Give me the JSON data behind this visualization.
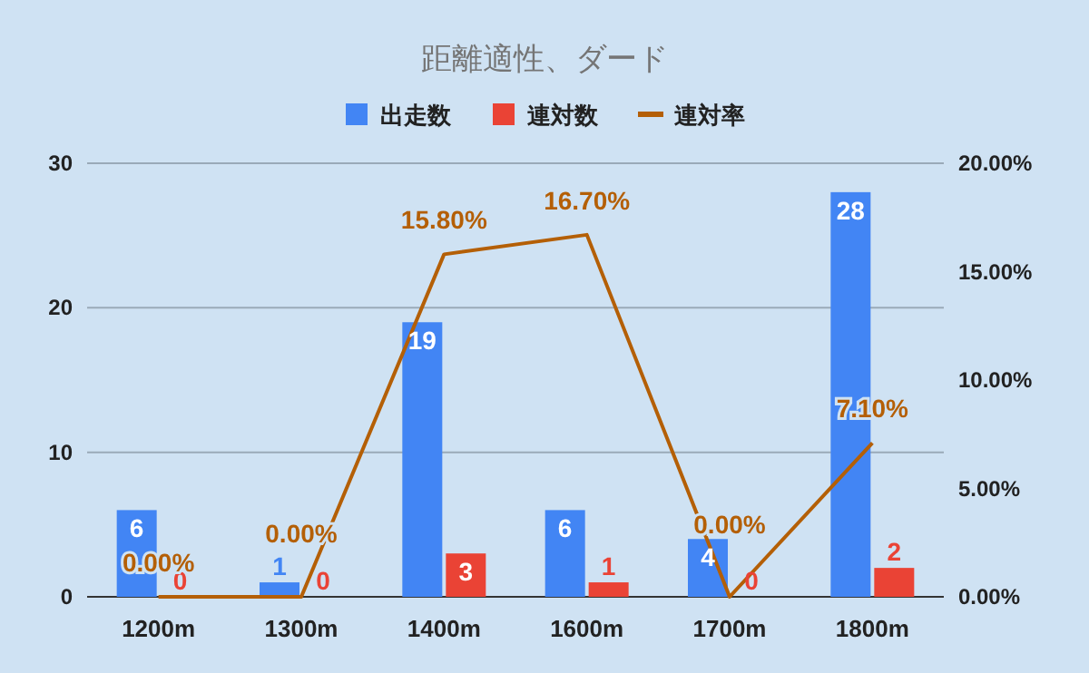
{
  "chart_data": {
    "type": "bar",
    "title": "距離適性、ダード",
    "categories": [
      "1200m",
      "1300m",
      "1400m",
      "1600m",
      "1700m",
      "1800m"
    ],
    "series": [
      {
        "name": "出走数",
        "color": "#4285f4",
        "values": [
          6,
          1,
          19,
          6,
          4,
          28
        ]
      },
      {
        "name": "連対数",
        "color": "#ea4335",
        "values": [
          0,
          0,
          3,
          1,
          0,
          2
        ]
      },
      {
        "name": "連対率",
        "type": "line",
        "axis": "y2",
        "color": "#b45f06",
        "values": [
          0,
          0,
          15.8,
          16.7,
          0,
          7.1
        ],
        "value_labels": [
          "0.00%",
          "0.00%",
          "15.80%",
          "16.70%",
          "0.00%",
          "7.10%"
        ]
      }
    ],
    "ylim": [
      0,
      30
    ],
    "yticks": [
      0,
      10,
      20,
      30
    ],
    "y2lim": [
      0,
      20
    ],
    "y2ticks": [
      {
        "value": 0,
        "label": "0.00%"
      },
      {
        "value": 5,
        "label": "5.00%"
      },
      {
        "value": 10,
        "label": "10.00%"
      },
      {
        "value": 15,
        "label": "15.00%"
      },
      {
        "value": 20,
        "label": "20.00%"
      }
    ],
    "data_labels": true,
    "grid": "y",
    "legend": "top"
  }
}
